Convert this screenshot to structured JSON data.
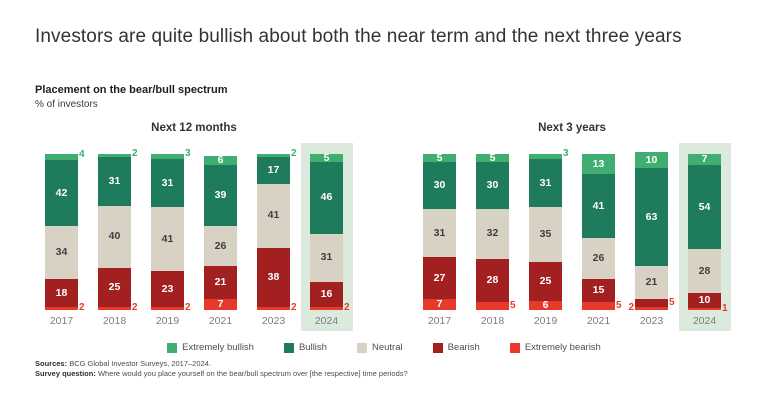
{
  "slide": {
    "title": "Investors are quite bullish about both the near term and the next three years",
    "subtitle": "Placement on the bear/bull spectrum",
    "unit_label": "% of investors"
  },
  "colors": {
    "extremely_bullish": "#3fae70",
    "bullish": "#1e7b5b",
    "neutral": "#d7d2c4",
    "bearish": "#a32020",
    "extremely_bearish": "#e73a2c",
    "neutral_label_text": "#3f3f3f",
    "inside_label_text": "#ffffff",
    "highlight_bg": "#dceade",
    "outside_green": "#3fae70",
    "outside_red": "#e8392d"
  },
  "legend": {
    "items": [
      {
        "label": "Extremely bullish",
        "color_key": "extremely_bullish"
      },
      {
        "label": "Bullish",
        "color_key": "bullish"
      },
      {
        "label": "Neutral",
        "color_key": "neutral"
      },
      {
        "label": "Bearish",
        "color_key": "bearish"
      },
      {
        "label": "Extremely bearish",
        "color_key": "extremely_bearish"
      }
    ]
  },
  "footer": {
    "sources_label": "Sources:",
    "sources_text": "BCG Global Investor Surveys, 2017–2024.",
    "question_label": "Survey question:",
    "question_text": "Where would you place yourself on the bear/bull spectrum over [the respective] time periods?"
  },
  "chart_data": [
    {
      "type": "bar",
      "stacked": true,
      "title": "Next 12 months",
      "categories": [
        "2017",
        "2018",
        "2019",
        "2021",
        "2023",
        "2024"
      ],
      "highlighted_category": "2024",
      "ylim": [
        0,
        100
      ],
      "series": [
        {
          "name": "Extremely bullish",
          "color_key": "extremely_bullish",
          "out_label_color_key": "outside_green",
          "values": [
            4,
            2,
            3,
            6,
            2,
            5
          ],
          "label_pos": [
            "out-right",
            "out-right",
            "out-right",
            "in",
            "out-right",
            "in"
          ]
        },
        {
          "name": "Bullish",
          "color_key": "bullish",
          "values": [
            42,
            31,
            31,
            39,
            17,
            46
          ],
          "label_pos": [
            "in",
            "in",
            "in",
            "in",
            "in",
            "in"
          ]
        },
        {
          "name": "Neutral",
          "color_key": "neutral",
          "values": [
            34,
            40,
            41,
            26,
            41,
            31
          ],
          "label_pos": [
            "in",
            "in",
            "in",
            "in",
            "in",
            "in"
          ]
        },
        {
          "name": "Bearish",
          "color_key": "bearish",
          "out_label_color_key": "outside_red",
          "values": [
            18,
            25,
            23,
            21,
            38,
            16
          ],
          "label_pos": [
            "in",
            "in",
            "in",
            "in",
            "in",
            "in"
          ]
        },
        {
          "name": "Extremely bearish",
          "color_key": "extremely_bearish",
          "out_label_color_key": "outside_red",
          "values": [
            2,
            2,
            2,
            7,
            2,
            2
          ],
          "label_pos": [
            "out-right",
            "out-right",
            "out-right",
            "in",
            "out-right",
            "out-right"
          ]
        }
      ]
    },
    {
      "type": "bar",
      "stacked": true,
      "title": "Next 3 years",
      "categories": [
        "2017",
        "2018",
        "2019",
        "2021",
        "2023",
        "2024"
      ],
      "highlighted_category": "2024",
      "ylim": [
        0,
        100
      ],
      "series": [
        {
          "name": "Extremely bullish",
          "color_key": "extremely_bullish",
          "out_label_color_key": "outside_green",
          "values": [
            5,
            5,
            3,
            13,
            10,
            7
          ],
          "label_pos": [
            "in",
            "in",
            "out-right",
            "in",
            "in",
            "in"
          ]
        },
        {
          "name": "Bullish",
          "color_key": "bullish",
          "values": [
            30,
            30,
            31,
            41,
            63,
            54
          ],
          "label_pos": [
            "in",
            "in",
            "in",
            "in",
            "in",
            "in"
          ]
        },
        {
          "name": "Neutral",
          "color_key": "neutral",
          "values": [
            31,
            32,
            35,
            26,
            21,
            28
          ],
          "label_pos": [
            "in",
            "in",
            "in",
            "in",
            "in",
            "in"
          ]
        },
        {
          "name": "Bearish",
          "color_key": "bearish",
          "out_label_color_key": "outside_red",
          "values": [
            27,
            28,
            25,
            15,
            5,
            10
          ],
          "label_pos": [
            "in",
            "in",
            "in",
            "in",
            "out-right",
            "in"
          ]
        },
        {
          "name": "Extremely bearish",
          "color_key": "extremely_bearish",
          "out_label_color_key": "outside_red",
          "values": [
            7,
            5,
            6,
            5,
            2,
            1
          ],
          "label_pos": [
            "in",
            "out-right",
            "in",
            "out-right",
            "out-left",
            "out-right"
          ]
        }
      ]
    }
  ]
}
